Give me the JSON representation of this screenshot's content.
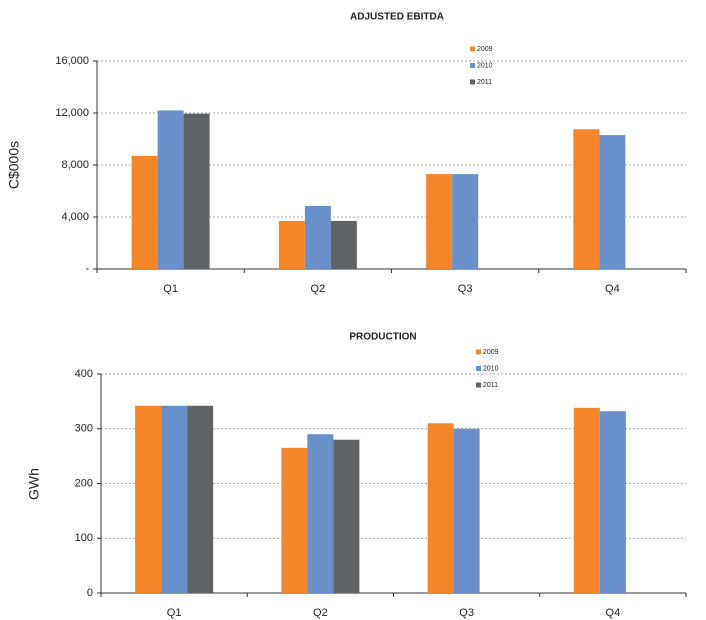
{
  "chart_data": [
    {
      "type": "bar",
      "title": "ADJUSTED EBITDA",
      "y_label": "C$000s",
      "categories": [
        "Q1",
        "Q2",
        "Q3",
        "Q4"
      ],
      "series": [
        {
          "name": "2009",
          "color": "#f5852b",
          "values": [
            8700,
            3700,
            7300,
            10750
          ]
        },
        {
          "name": "2010",
          "color": "#6990c8",
          "values": [
            12200,
            4850,
            7300,
            10300
          ]
        },
        {
          "name": "2011",
          "color": "#5f6266",
          "values": [
            11950,
            3700,
            null,
            null
          ]
        }
      ],
      "ylim": [
        0,
        16000
      ],
      "yticks": [
        {
          "value": 0,
          "label": "-"
        },
        {
          "value": 4000,
          "label": "4,000"
        },
        {
          "value": 8000,
          "label": "8,000"
        },
        {
          "value": 12000,
          "label": "12,000"
        },
        {
          "value": 16000,
          "label": "16,000"
        }
      ],
      "grid": true
    },
    {
      "type": "bar",
      "title": "PRODUCTION",
      "y_label": "GWh",
      "categories": [
        "Q1",
        "Q2",
        "Q3",
        "Q4"
      ],
      "series": [
        {
          "name": "2009",
          "color": "#f5852b",
          "values": [
            342,
            265,
            310,
            338
          ]
        },
        {
          "name": "2010",
          "color": "#6990c8",
          "values": [
            342,
            290,
            300,
            332
          ]
        },
        {
          "name": "2011",
          "color": "#5f6266",
          "values": [
            342,
            280,
            null,
            null
          ]
        }
      ],
      "ylim": [
        0,
        400
      ],
      "yticks": [
        0,
        100,
        200,
        300,
        400
      ],
      "grid": true
    }
  ]
}
